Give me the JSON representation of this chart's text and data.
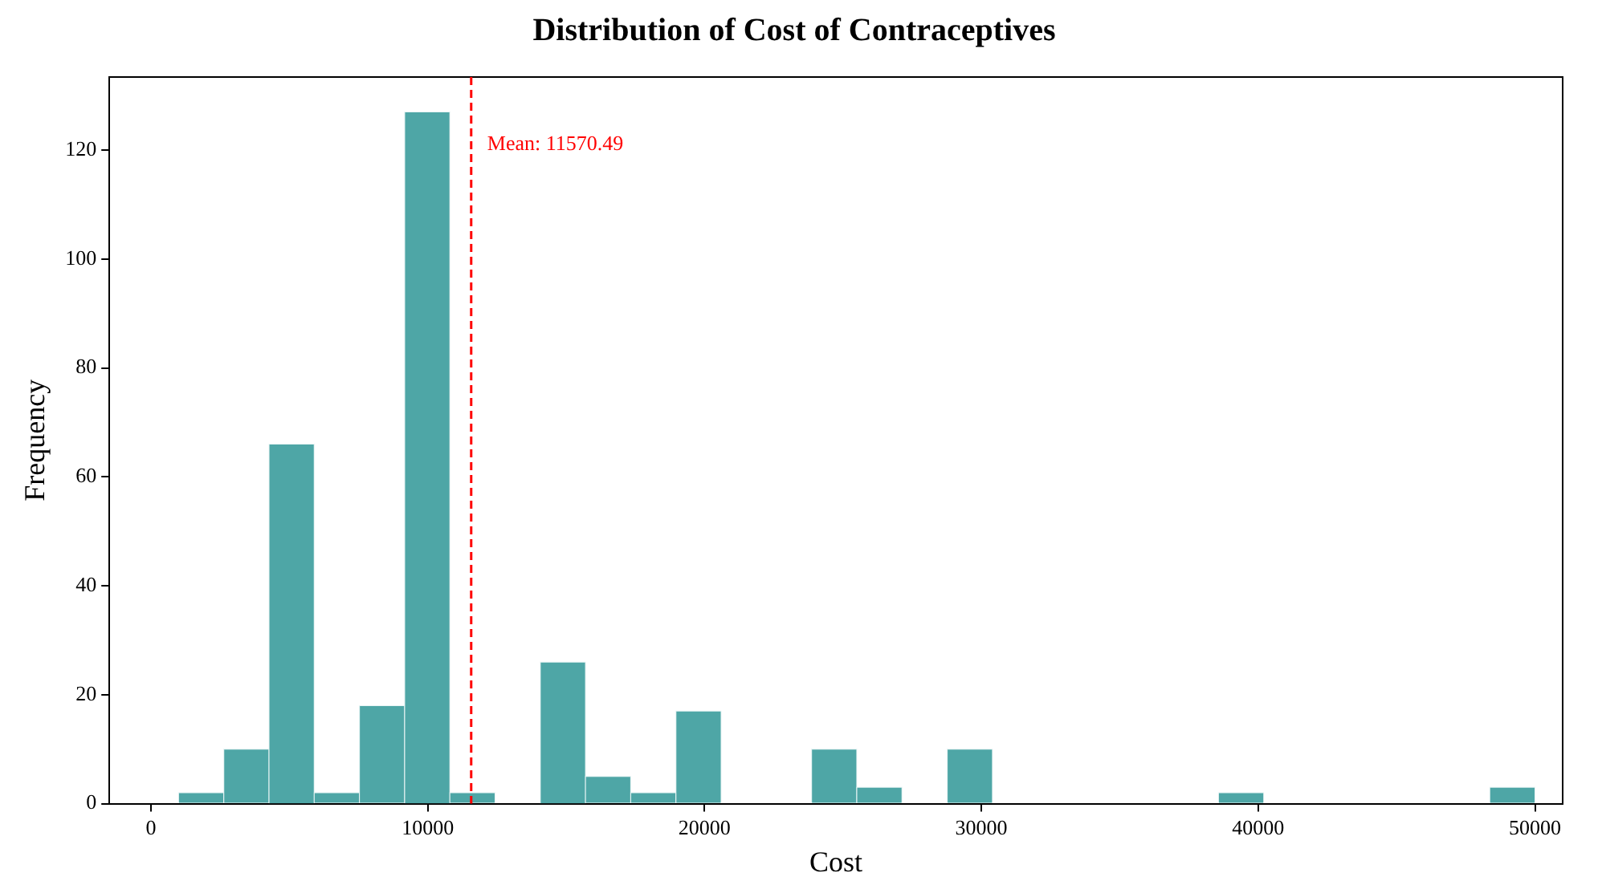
{
  "chart_data": {
    "type": "histogram",
    "title": "Distribution of Cost of Contraceptives",
    "xlabel": "Cost",
    "ylabel": "Frequency",
    "bins": [
      1000,
      2633,
      4267,
      5900,
      7533,
      9167,
      10800,
      12433,
      14067,
      15700,
      17333,
      18967,
      20600,
      22233,
      23867,
      25500,
      27133,
      28767,
      30400,
      32033,
      33667,
      35300,
      36933,
      38567,
      40200,
      41833,
      43467,
      45100,
      46733,
      48367,
      50000
    ],
    "values": [
      2,
      10,
      66,
      2,
      18,
      127,
      2,
      0,
      26,
      5,
      2,
      17,
      0,
      0,
      10,
      3,
      0,
      10,
      0,
      0,
      0,
      0,
      0,
      2,
      0,
      0,
      0,
      0,
      0,
      3
    ],
    "color": "#4ea6a6",
    "xlim": [
      -1500,
      51000
    ],
    "xticks": [
      0,
      10000,
      20000,
      30000,
      40000,
      50000
    ],
    "ylim": [
      0,
      133.4
    ],
    "yticks": [
      0,
      20,
      40,
      60,
      80,
      100,
      120
    ],
    "ref_lines": [
      {
        "axis": "x",
        "value": 11570.49,
        "label": "Mean: 11570.49",
        "color": "#ff0000",
        "line_style": "dashed"
      }
    ],
    "grid": false,
    "legend": false
  }
}
